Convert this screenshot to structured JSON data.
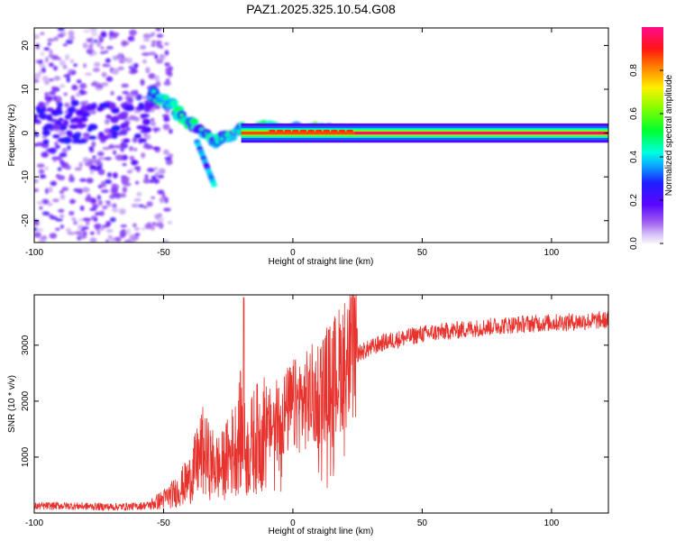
{
  "title": "PAZ1.2025.325.10.54.G08",
  "colors": {
    "snr_line": "#e8322d",
    "axis": "#000000",
    "background": "#ffffff"
  },
  "chart_data": [
    {
      "type": "heatmap",
      "name": "spectrogram",
      "title": "PAZ1.2025.325.10.54.G08",
      "xlabel": "Height of straight line (km)",
      "ylabel": "Frequency (Hz)",
      "xlim": [
        -100,
        122
      ],
      "ylim": [
        -25,
        24
      ],
      "x_ticks": [
        -100,
        -50,
        0,
        50,
        100
      ],
      "y_ticks": [
        -20,
        -10,
        0,
        10,
        20
      ],
      "colorbar": {
        "label": "Normalized spectral amplitude",
        "range": [
          0,
          1
        ],
        "ticks": [
          "0.0",
          "0.2",
          "0.4",
          "0.6",
          "0.8"
        ],
        "colormap": "rainbow (violet → blue → cyan → green → yellow → red → magenta)"
      },
      "description_of_features": {
        "noise_region_km": [
          -100,
          -55
        ],
        "noise_freq_spread_hz": [
          -25,
          24
        ],
        "ridge": [
          {
            "x": -52,
            "f": 8.0
          },
          {
            "x": -48,
            "f": 7.0
          },
          {
            "x": -45,
            "f": 5.0
          },
          {
            "x": -42,
            "f": 3.5
          },
          {
            "x": -38,
            "f": 1.5
          },
          {
            "x": -34,
            "f": -0.5
          },
          {
            "x": -30,
            "f": -1.5
          },
          {
            "x": -26,
            "f": -1.2
          },
          {
            "x": -22,
            "f": 0.5
          },
          {
            "x": -17,
            "f": 1.0
          },
          {
            "x": -12,
            "f": 1.2
          },
          {
            "x": -5,
            "f": 0.8
          },
          {
            "x": 5,
            "f": 0.6
          },
          {
            "x": 15,
            "f": 0.5
          },
          {
            "x": 25,
            "f": 0.0
          },
          {
            "x": 122,
            "f": 0.0
          }
        ]
      }
    },
    {
      "type": "line",
      "name": "snr",
      "xlabel": "Height of straight line (km)",
      "ylabel": "SNR (10 * v/v)",
      "xlim": [
        -100,
        122
      ],
      "ylim": [
        0,
        3900
      ],
      "x_ticks": [
        -100,
        -50,
        0,
        50,
        100
      ],
      "y_ticks": [
        1000,
        2000,
        3000
      ],
      "series": [
        {
          "name": "SNR",
          "x": [
            -100,
            -90,
            -80,
            -70,
            -60,
            -55,
            -50,
            -45,
            -40,
            -37,
            -35,
            -32,
            -28,
            -25,
            -22,
            -20,
            -18,
            -15,
            -12,
            -10,
            -5,
            0,
            5,
            10,
            15,
            20,
            25,
            30,
            35,
            40,
            50,
            60,
            70,
            80,
            90,
            100,
            110,
            122
          ],
          "values": [
            120,
            130,
            120,
            110,
            120,
            150,
            250,
            380,
            600,
            900,
            1100,
            900,
            800,
            1000,
            1200,
            1500,
            1000,
            1300,
            1400,
            1500,
            1700,
            1900,
            2000,
            2200,
            2400,
            2700,
            2850,
            2950,
            3050,
            3100,
            3200,
            3250,
            3300,
            3350,
            3380,
            3400,
            3420,
            3450
          ],
          "max_spike": {
            "x": -19,
            "value": 3850
          }
        }
      ]
    }
  ]
}
